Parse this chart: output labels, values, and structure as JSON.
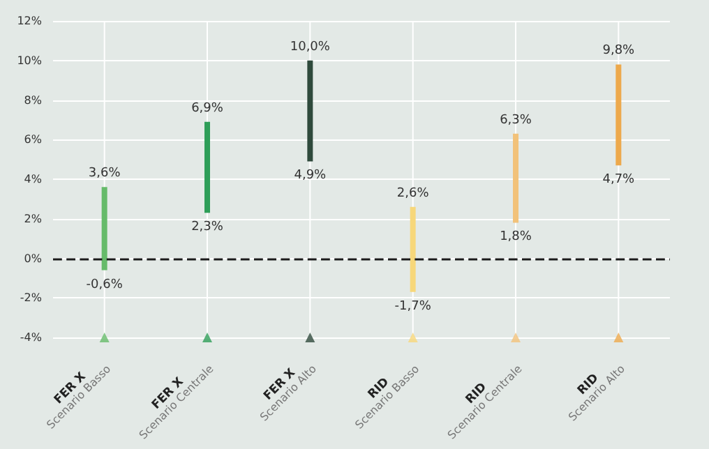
{
  "chart_data": {
    "type": "bar",
    "categories": [
      "FER X\nScenario Basso",
      "FER X\nScenario Centrale",
      "FER X\nScenario Alto",
      "RID\nScenario Basso",
      "RID\nScenario Centrale",
      "RID\nScenario Alto"
    ],
    "series": [
      {
        "colors": [
          "#66bb6a",
          "#2e9e58",
          "#2f4a3c",
          "#f7d77a",
          "#f2c27a",
          "#eda94c"
        ],
        "base": [
          -0.6,
          2.3,
          4.9,
          -1.7,
          1.8,
          4.7
        ],
        "values": [
          4.2,
          4.6,
          5.1,
          4.3,
          4.5,
          5.1
        ]
      },
      {
        "type": "scatter",
        "marker": "triangle",
        "colors": [
          "#66bb6a",
          "#2e9e58",
          "#2f4a3c",
          "#f7d77a",
          "#f2c27a",
          "#eda94c"
        ],
        "x": [
          "FER X\nScenario Basso",
          "FER X\nScenario Centrale",
          "FER X\nScenario Alto",
          "RID\nScenario Basso",
          "RID\nScenario Centrale",
          "RID\nScenario Alto"
        ],
        "values": [
          -4,
          -4,
          -4,
          -4,
          -4,
          -4
        ]
      }
    ],
    "ylim": [
      -4,
      12
    ],
    "yticks": [
      {
        "value": -4,
        "label": "-4%"
      },
      {
        "value": -2,
        "label": "-2%"
      },
      {
        "value": 0,
        "label": "0%"
      },
      {
        "value": 2,
        "label": "2%"
      },
      {
        "value": 4,
        "label": "4%"
      },
      {
        "value": 6,
        "label": "6%"
      },
      {
        "value": 8,
        "label": "8%"
      },
      {
        "value": 10,
        "label": "10%"
      },
      {
        "value": 12,
        "label": "12%"
      }
    ],
    "grid": true,
    "ref_lines": [
      {
        "axis": "y",
        "value": 0,
        "color": "#1a1a1a",
        "line_style": "dashed"
      }
    ],
    "annotations": [
      {
        "text": "3,6%",
        "x": "FER X\nScenario Basso",
        "y": 3.6
      },
      {
        "text": "-0,6%",
        "x": "FER X\nScenario Basso",
        "y": -0.6
      },
      {
        "text": "6,9%",
        "x": "FER X\nScenario Centrale",
        "y": 6.9
      },
      {
        "text": "2,3%",
        "x": "FER X\nScenario Centrale",
        "y": 2.3
      },
      {
        "text": "10,0%",
        "x": "FER X\nScenario Alto",
        "y": 10.0
      },
      {
        "text": "4,9%",
        "x": "FER X\nScenario Alto",
        "y": 4.9
      },
      {
        "text": "2,6%",
        "x": "RID\nScenario Basso",
        "y": 2.6
      },
      {
        "text": "-1,7%",
        "x": "RID\nScenario Basso",
        "y": -1.7
      },
      {
        "text": "6,3%",
        "x": "RID\nScenario Centrale",
        "y": 6.3
      },
      {
        "text": "1,8%",
        "x": "RID\nScenario Centrale",
        "y": 1.8
      },
      {
        "text": "9,8%",
        "x": "RID\nScenario Alto",
        "y": 9.8
      },
      {
        "text": "4,7%",
        "x": "RID\nScenario Alto",
        "y": 4.7
      }
    ]
  }
}
